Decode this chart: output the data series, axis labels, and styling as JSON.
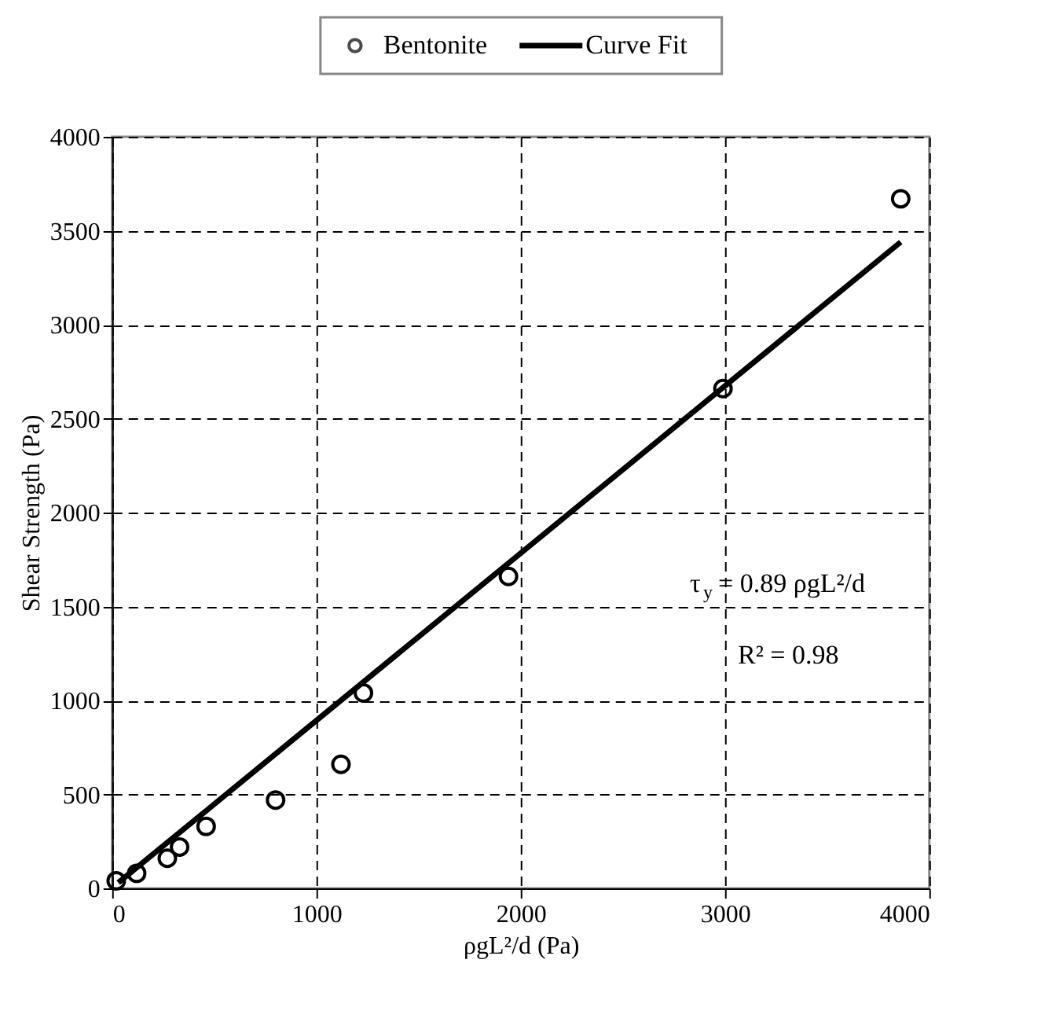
{
  "chart_data": {
    "type": "scatter",
    "xlabel": "ρgL²/d (Pa)",
    "ylabel": "Shear Strength (Pa)",
    "xlim": [
      0,
      4000
    ],
    "ylim": [
      0,
      4000
    ],
    "xticks": [
      0,
      1000,
      2000,
      3000,
      4000
    ],
    "yticks": [
      0,
      500,
      1000,
      1500,
      2000,
      2500,
      3000,
      3500,
      4000
    ],
    "grid": true,
    "legend": "top",
    "annotations": [
      "τ$_{y}$ = 0.89 ρgL²/d",
      "R² = 0.98"
    ],
    "series": [
      {
        "name": "Bentonite",
        "color": "#000000",
        "marker": "circle",
        "x": [
          20,
          120,
          270,
          330,
          460,
          800,
          1120,
          1230,
          1940,
          2990,
          3860
        ],
        "values": [
          40,
          80,
          160,
          220,
          330,
          470,
          660,
          1040,
          1660,
          2660,
          3670
        ]
      },
      {
        "name": "Curve Fit",
        "color": "#000000",
        "type": "line",
        "marker": "none",
        "line_style": "solid",
        "x": [
          30,
          3860
        ],
        "values": [
          30,
          3440
        ]
      }
    ]
  }
}
